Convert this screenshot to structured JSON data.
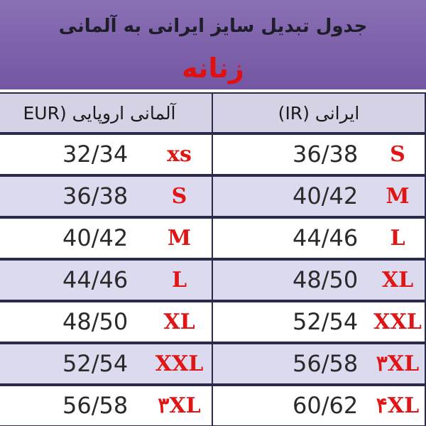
{
  "header": {
    "title": "جدول تبدیل سایز ایرانی به آلمانی",
    "subtitle": "زنانه"
  },
  "table": {
    "columns": [
      "آلمانی اروپایی (EUR",
      "ایرانی (IR)"
    ],
    "rows": [
      {
        "eur": "32/34",
        "eur_size": "xs",
        "ir": "36/38",
        "ir_size": "S"
      },
      {
        "eur": "36/38",
        "eur_size": "S",
        "ir": "40/42",
        "ir_size": "M"
      },
      {
        "eur": "40/42",
        "eur_size": "M",
        "ir": "44/46",
        "ir_size": "L"
      },
      {
        "eur": "44/46",
        "eur_size": "L",
        "ir": "48/50",
        "ir_size": "XL"
      },
      {
        "eur": "48/50",
        "eur_size": "XL",
        "ir": "52/54",
        "ir_size": "XXL"
      },
      {
        "eur": "52/54",
        "eur_size": "XXL",
        "ir": "56/58",
        "ir_size": "۳XL"
      },
      {
        "eur": "56/58",
        "eur_size": "۳XL",
        "ir": "60/62",
        "ir_size": "۴XL"
      }
    ]
  }
}
